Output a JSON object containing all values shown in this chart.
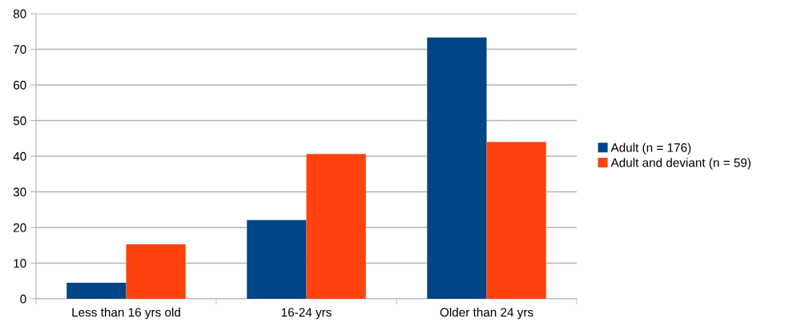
{
  "chart_data": {
    "type": "bar",
    "categories": [
      "Less than 16 yrs old",
      "16-24 yrs",
      "Older than 24 yrs"
    ],
    "series": [
      {
        "name": "Adult (n = 176)",
        "color": "#004586",
        "values": [
          4.5,
          22.1,
          73.3
        ]
      },
      {
        "name": "Adult and deviant (n = 59)",
        "color": "#ff420e",
        "values": [
          15.3,
          40.6,
          44.0
        ]
      }
    ],
    "ylim": [
      0,
      80
    ],
    "yticks": [
      0,
      10,
      20,
      30,
      40,
      50,
      60,
      70,
      80
    ],
    "grid": "y",
    "legend": "right"
  }
}
